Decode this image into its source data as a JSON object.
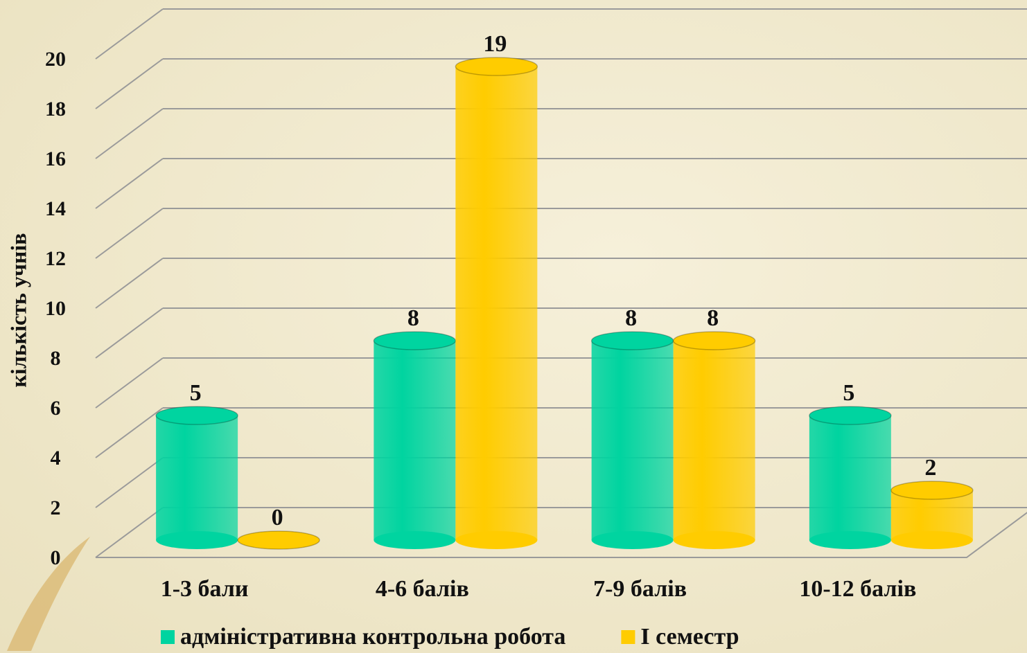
{
  "chart_data": {
    "type": "bar3d",
    "y_label": "кількість учнів",
    "categories": [
      "1-3 бали",
      "4-6 балів",
      "7-9 балів",
      "10-12 балів"
    ],
    "series": [
      {
        "name": "адміністративна контрольна робота",
        "color": "#00d4a0",
        "values": [
          5,
          8,
          8,
          5
        ]
      },
      {
        "name": "І семестр",
        "color": "#ffcc00",
        "values": [
          0,
          19,
          8,
          2
        ]
      }
    ],
    "ylim": [
      0,
      20
    ],
    "yticks": [
      0,
      2,
      4,
      6,
      8,
      10,
      12,
      14,
      16,
      18,
      20
    ],
    "grid": true,
    "legend": "bottom"
  }
}
